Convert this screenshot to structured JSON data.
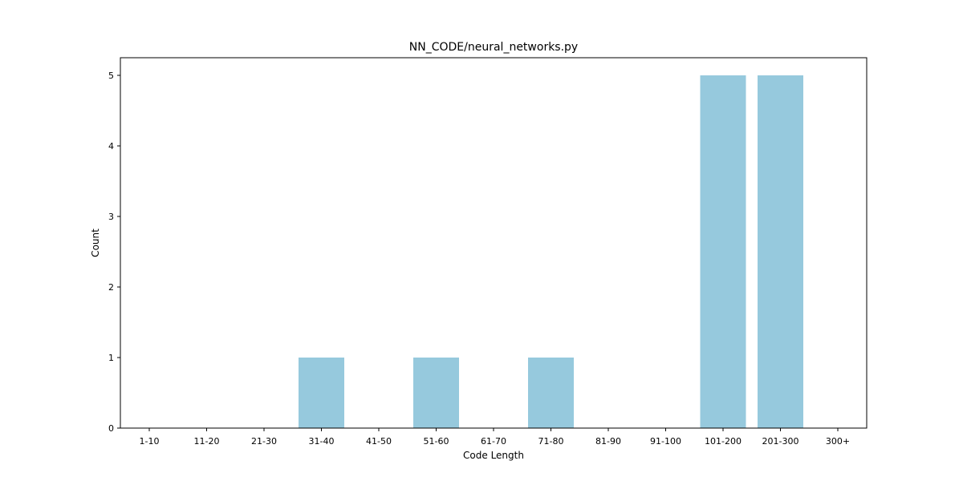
{
  "chart_data": {
    "type": "bar",
    "title": "NN_CODE/neural_networks.py",
    "xlabel": "Code Length",
    "ylabel": "Count",
    "categories": [
      "1-10",
      "11-20",
      "21-30",
      "31-40",
      "41-50",
      "51-60",
      "61-70",
      "71-80",
      "81-90",
      "91-100",
      "101-200",
      "201-300",
      "300+"
    ],
    "values": [
      0,
      0,
      0,
      1,
      0,
      1,
      0,
      1,
      0,
      0,
      5,
      5,
      0
    ],
    "ylim": [
      0,
      5.25
    ],
    "yticks": [
      0,
      1,
      2,
      3,
      4,
      5
    ],
    "grid": false,
    "bar_color": "#96c9dd"
  }
}
